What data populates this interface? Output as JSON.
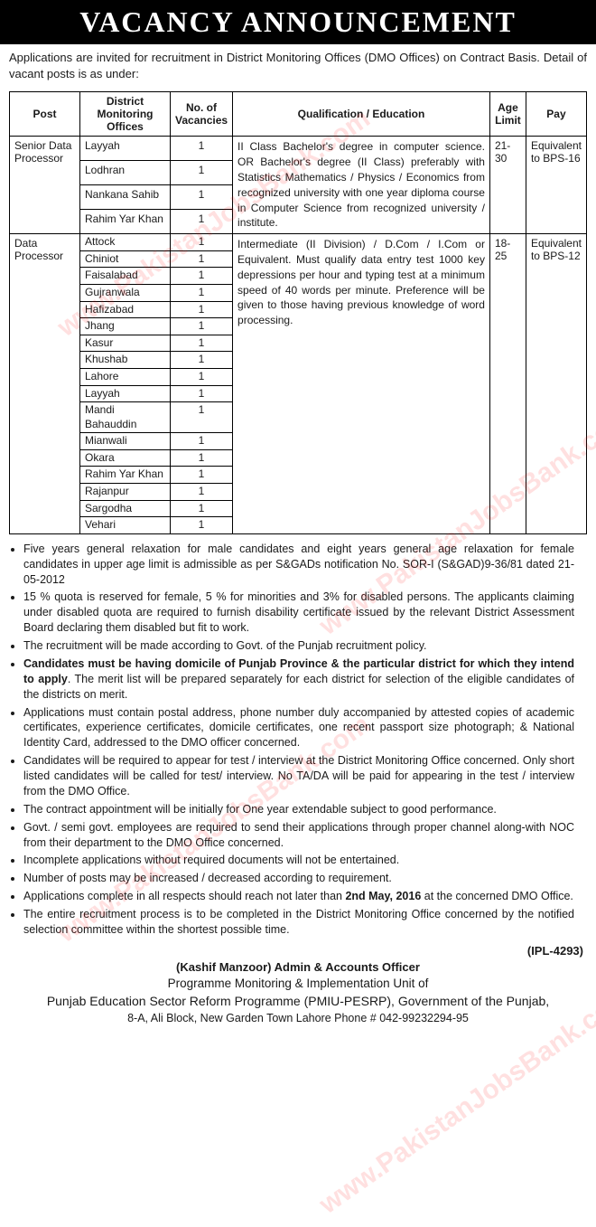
{
  "banner": "VACANCY ANNOUNCEMENT",
  "intro": "Applications are invited for recruitment in District Monitoring Offices (DMO Offices) on Contract Basis. Detail of vacant posts is as under:",
  "table": {
    "headers": [
      "Post",
      "District Monitoring Offices",
      "No. of Vacancies",
      "Qualification / Education",
      "Age Limit",
      "Pay"
    ],
    "groups": [
      {
        "post": "Senior Data Processor",
        "qualification": "II Class Bachelor's degree in computer science.\nOR\nBachelor's degree (II Class) preferably with Statistics Mathematics / Physics / Economics from recognized university with one year diploma course in Computer Science from recognized university / institute.",
        "age": "21-30",
        "pay": "Equivalent to BPS-16",
        "rows": [
          {
            "dmo": "Layyah",
            "n": "1"
          },
          {
            "dmo": "Lodhran",
            "n": "1"
          },
          {
            "dmo": "Nankana Sahib",
            "n": "1"
          },
          {
            "dmo": "Rahim Yar Khan",
            "n": "1"
          }
        ]
      },
      {
        "post": "Data Processor",
        "qualification": "Intermediate (II Division) / D.Com / I.Com or Equivalent.\nMust qualify data entry test 1000 key depressions per hour and typing test at a minimum speed of 40 words per minute.  Preference will be given to those having previous knowledge of word processing.",
        "age": "18-25",
        "pay": "Equivalent to BPS-12",
        "rows": [
          {
            "dmo": "Attock",
            "n": "1"
          },
          {
            "dmo": "Chiniot",
            "n": "1"
          },
          {
            "dmo": "Faisalabad",
            "n": "1"
          },
          {
            "dmo": "Gujranwala",
            "n": "1"
          },
          {
            "dmo": "Hafizabad",
            "n": "1"
          },
          {
            "dmo": "Jhang",
            "n": "1"
          },
          {
            "dmo": "Kasur",
            "n": "1"
          },
          {
            "dmo": "Khushab",
            "n": "1"
          },
          {
            "dmo": "Lahore",
            "n": "1"
          },
          {
            "dmo": "Layyah",
            "n": "1"
          },
          {
            "dmo": "Mandi Bahauddin",
            "n": "1"
          },
          {
            "dmo": "Mianwali",
            "n": "1"
          },
          {
            "dmo": "Okara",
            "n": "1"
          },
          {
            "dmo": "Rahim Yar Khan",
            "n": "1"
          },
          {
            "dmo": "Rajanpur",
            "n": "1"
          },
          {
            "dmo": "Sargodha",
            "n": "1"
          },
          {
            "dmo": "Vehari",
            "n": "1"
          }
        ]
      }
    ]
  },
  "notes": [
    {
      "text": "Five years general relaxation for male candidates and eight years general age relaxation for female candidates in upper age limit is admissible as per S&GADs notification No. SOR-I (S&GAD)9-36/81 dated 21-05-2012"
    },
    {
      "text": "15 % quota is reserved for female, 5 % for minorities and 3% for disabled persons. The applicants claiming under disabled quota are required to furnish disability certificate issued by the relevant District Assessment Board declaring them disabled but fit to work."
    },
    {
      "text": "The recruitment will be made according to Govt. of the Punjab recruitment policy."
    },
    {
      "boldPrefix": "Candidates must be having domicile of Punjab Province & the particular district for which they intend to apply",
      "text": ". The merit list will be prepared separately for each district for selection of the eligible candidates of the districts on merit."
    },
    {
      "text": "Applications must contain postal address, phone number duly accompanied by attested copies of academic certificates, experience certificates, domicile certificates, one recent passport size photograph; & National Identity Card, addressed to the DMO officer concerned."
    },
    {
      "text": "Candidates will be required to appear for test / interview at the District Monitoring Office concerned. Only short listed candidates will be called for test/ interview. No TA/DA will be paid for appearing in the test / interview from the DMO Office."
    },
    {
      "text": "The contract appointment will be initially for One year extendable subject to good performance."
    },
    {
      "text": "Govt. / semi govt. employees are required to send their applications through proper channel along-with NOC from their department to the DMO Office concerned."
    },
    {
      "text": "Incomplete applications without required documents will not be entertained."
    },
    {
      "text": "Number of posts may be increased / decreased according to requirement."
    },
    {
      "textBefore": "Applications complete in all respects should reach not later than ",
      "boldMid": "2nd May, 2016",
      "textAfter": " at the concerned DMO Office."
    },
    {
      "text": "The entire recruitment process is to be completed in the District Monitoring Office concerned by the notified selection committee within the shortest possible time."
    }
  ],
  "ipl": "(IPL-4293)",
  "footer": {
    "line1": "(Kashif Manzoor) Admin & Accounts Officer",
    "line2": "Programme Monitoring & Implementation Unit of",
    "line3": "Punjab Education Sector Reform Programme (PMIU-PESRP), Government of the Punjab,",
    "line4": "8-A, Ali Block, New Garden Town Lahore       Phone # 042-99232294-95"
  },
  "watermark": "www.PakistanJobsBank.com"
}
